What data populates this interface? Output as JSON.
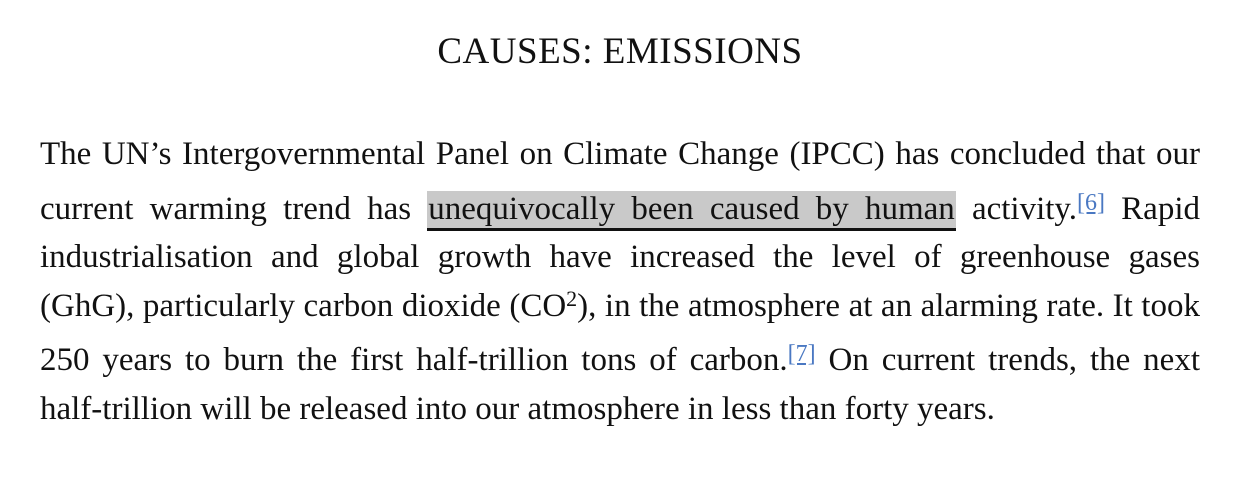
{
  "heading": "CAUSES: EMISSIONS",
  "paragraph": {
    "part1": "The UN’s Intergovernmental Panel on Climate Change (IPCC) has concluded that our current warming trend has ",
    "highlight": "unequivocally been caused by human",
    "part2": " activity.",
    "footnote1": "[6]",
    "part3": " Rapid industrialisation and global growth have increased the level of greenhouse gases (GhG), particularly carbon dioxide (CO",
    "co2_superscript": "2",
    "part4": "), in the at­mosphere at an alarming rate. It took 250 years to burn the first half-trillion tons of carbon.",
    "footnote2": "[7]",
    "part5": " On current trends, the next half-trillion will be released into our atmosphere in less than forty years."
  },
  "colors": {
    "highlight_bg": "#c9c9c9",
    "footnote_link": "#4a78c2"
  }
}
